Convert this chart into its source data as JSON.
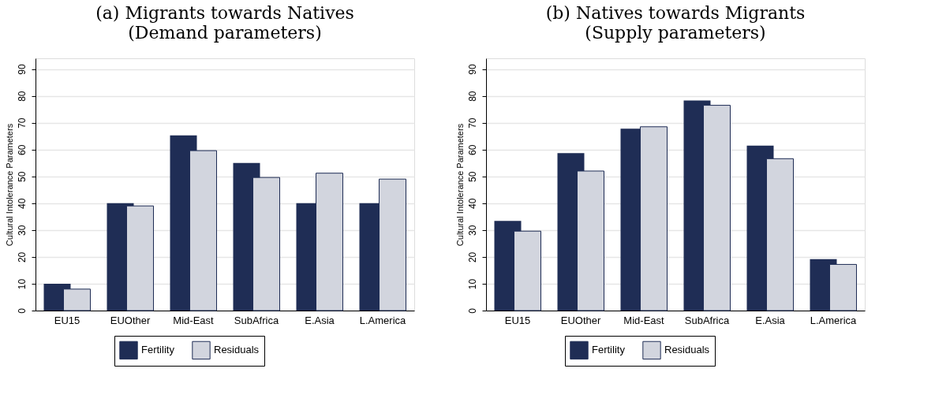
{
  "chart_data": [
    {
      "type": "bar",
      "title": "(a) Migrants towards Natives",
      "subtitle": "(Demand parameters)",
      "ylabel": "Cultural Intolerance Parameters",
      "categories": [
        "EU15",
        "EUOther",
        "Mid-East",
        "SubAfrica",
        "E.Asia",
        "L.America"
      ],
      "series": [
        {
          "name": "Fertility",
          "color": "#1f2d55",
          "values": [
            10,
            40,
            65.3,
            55,
            40,
            40
          ]
        },
        {
          "name": "Residuals",
          "color": "#d2d5de",
          "values": [
            8,
            39,
            59.6,
            49.6,
            51.2,
            49
          ]
        }
      ],
      "ylim": [
        0,
        94
      ],
      "yticks": [
        0,
        10,
        20,
        30,
        40,
        50,
        60,
        70,
        80,
        90
      ],
      "grid": "y",
      "legend": "bottom"
    },
    {
      "type": "bar",
      "title": "(b) Natives towards Migrants",
      "subtitle": "(Supply parameters)",
      "ylabel": "Cultural Intolerance Parameters",
      "categories": [
        "EU15",
        "EUOther",
        "Mid-East",
        "SubAfrica",
        "E.Asia",
        "L.America"
      ],
      "series": [
        {
          "name": "Fertility",
          "color": "#1f2d55",
          "values": [
            33.4,
            58.7,
            67.8,
            78.3,
            61.5,
            19.2
          ]
        },
        {
          "name": "Residuals",
          "color": "#d2d5de",
          "values": [
            29.6,
            52,
            68.5,
            76.5,
            56.6,
            17.2
          ]
        }
      ],
      "ylim": [
        0,
        94
      ],
      "yticks": [
        0,
        10,
        20,
        30,
        40,
        50,
        60,
        70,
        80,
        90
      ],
      "grid": "y",
      "legend": "bottom"
    }
  ]
}
